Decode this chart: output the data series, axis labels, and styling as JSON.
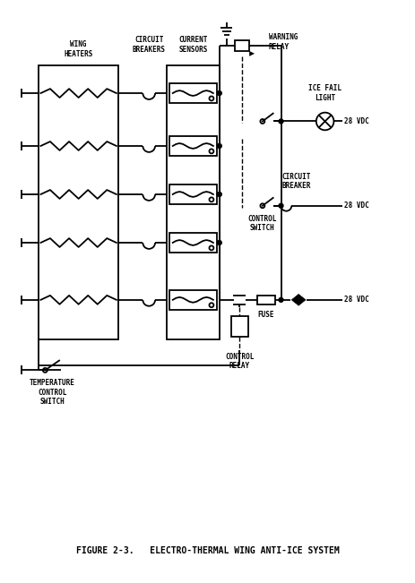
{
  "title": "FIGURE 2-3.   ELECTRO-THERMAL WING ANTI-ICE SYSTEM",
  "bg_color": "#ffffff",
  "labels": {
    "wing_heaters": "WING\nHEATERS",
    "circuit_breakers": "CIRCUIT\nBREAKERS",
    "current_sensors": "CURRENT\nSENSORS",
    "warning_relay": "WARNING\nRELAY",
    "ice_fail_light": "ICE FAIL\nLIGHT",
    "circuit_breaker": "CIRCUIT\nBREAKER",
    "control_switch": "CONTROL\nSWITCH",
    "fuse": "FUSE",
    "temp_control": "TEMPERATURE\nCONTROL\nSWITCH",
    "control_relay": "CONTROL\nRELAY",
    "vdc_1": "28 VDC",
    "vdc_2": "28 VDC",
    "vdc_3": "28 VDC"
  }
}
